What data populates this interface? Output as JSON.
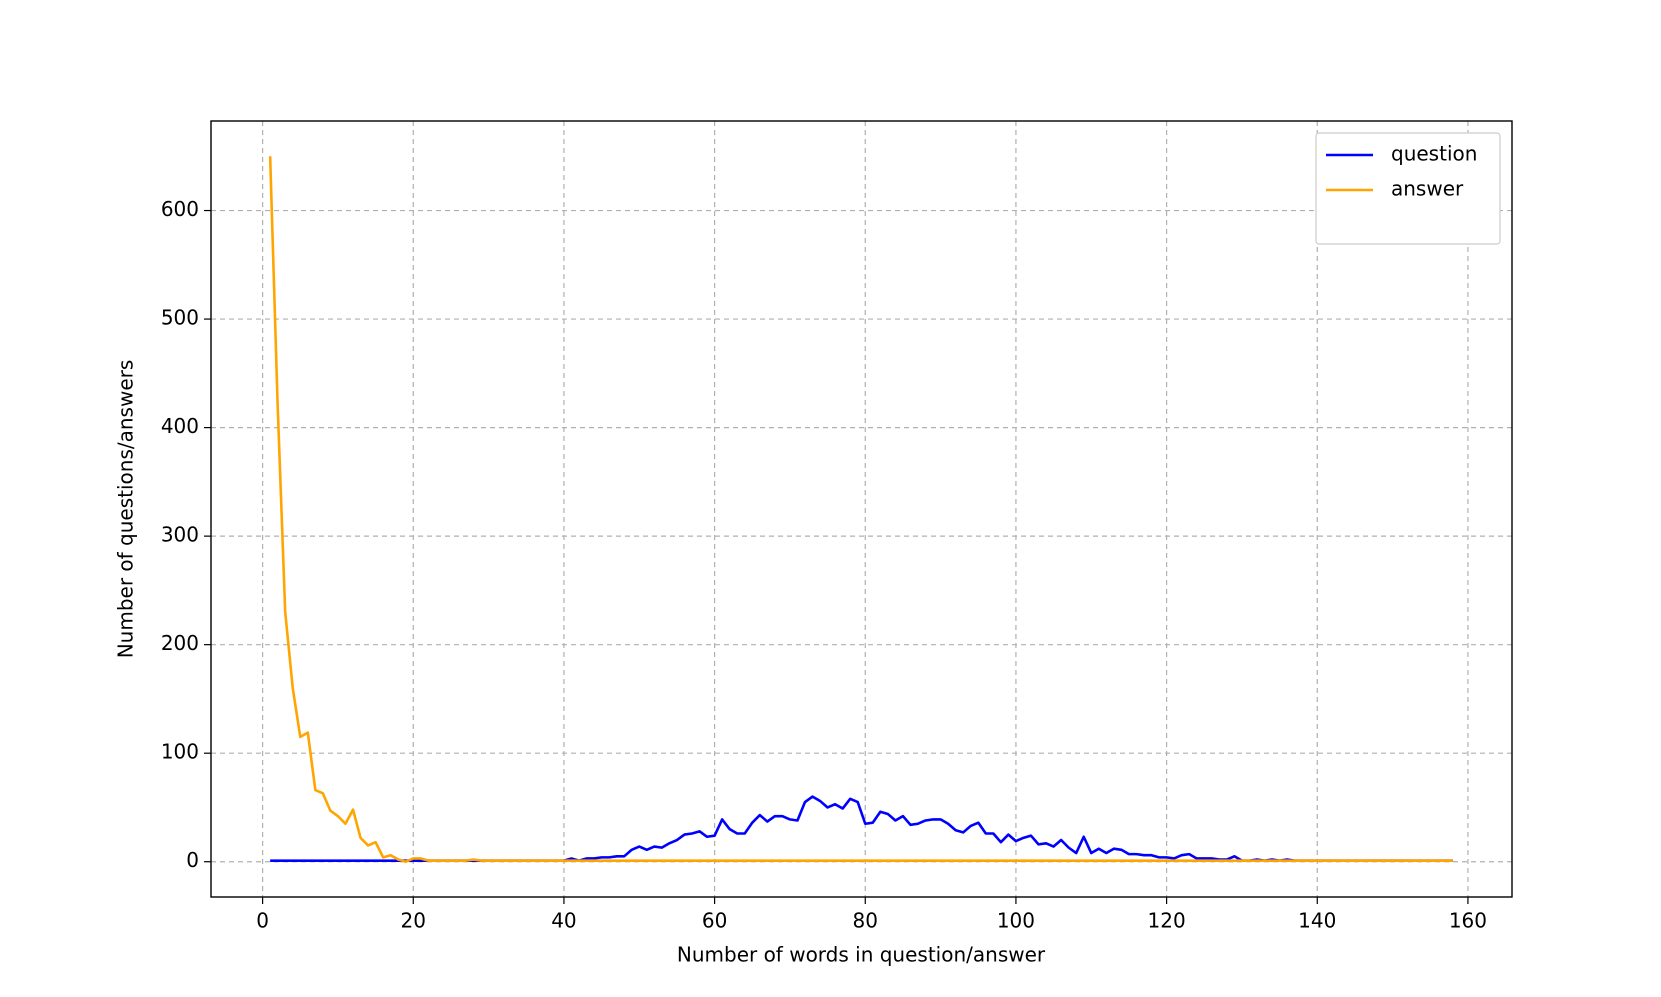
{
  "chart_data": {
    "type": "line",
    "x_label": "Number of words in question/answer",
    "y_label": "Number of questions/answers",
    "x": [
      1,
      2,
      3,
      4,
      5,
      6,
      7,
      8,
      9,
      10,
      11,
      12,
      13,
      14,
      15,
      16,
      17,
      18,
      19,
      20,
      21,
      22,
      23,
      24,
      25,
      26,
      27,
      28,
      29,
      30,
      31,
      32,
      33,
      34,
      35,
      36,
      37,
      38,
      39,
      40,
      41,
      42,
      43,
      44,
      45,
      46,
      47,
      48,
      49,
      50,
      51,
      52,
      53,
      54,
      55,
      56,
      57,
      58,
      59,
      60,
      61,
      62,
      63,
      64,
      65,
      66,
      67,
      68,
      69,
      70,
      71,
      72,
      73,
      74,
      75,
      76,
      77,
      78,
      79,
      80,
      81,
      82,
      83,
      84,
      85,
      86,
      87,
      88,
      89,
      90,
      91,
      92,
      93,
      94,
      95,
      96,
      97,
      98,
      99,
      100,
      101,
      102,
      103,
      104,
      105,
      106,
      107,
      108,
      109,
      110,
      111,
      112,
      113,
      114,
      115,
      116,
      117,
      118,
      119,
      120,
      121,
      122,
      123,
      124,
      125,
      126,
      127,
      128,
      129,
      130,
      131,
      132,
      133,
      134,
      135,
      136,
      137,
      138,
      139,
      140,
      141,
      142,
      143,
      144,
      145,
      146,
      147,
      148,
      149,
      150,
      151,
      152,
      153,
      154,
      155,
      156,
      157,
      158
    ],
    "series": [
      {
        "name": "question",
        "color": "#0000ff",
        "values": [
          1,
          1,
          1,
          1,
          1,
          1,
          1,
          1,
          1,
          1,
          1,
          1,
          1,
          1,
          1,
          1,
          1,
          1,
          1,
          1,
          1,
          1,
          1,
          1,
          1,
          1,
          1,
          1,
          1,
          1,
          1,
          1,
          1,
          1,
          1,
          1,
          1,
          1,
          1,
          1,
          3,
          1,
          3,
          3,
          4,
          4,
          5,
          5,
          11,
          14,
          11,
          14,
          13,
          17,
          20,
          25,
          26,
          28,
          23,
          24,
          39,
          30,
          26,
          26,
          36,
          43,
          37,
          42,
          42,
          39,
          38,
          55,
          60,
          56,
          50,
          53,
          49,
          58,
          55,
          35,
          36,
          46,
          44,
          38,
          42,
          34,
          35,
          38,
          39,
          39,
          35,
          29,
          27,
          33,
          36,
          26,
          26,
          18,
          25,
          19,
          22,
          24,
          16,
          17,
          14,
          20,
          13,
          8,
          23,
          8,
          12,
          8,
          12,
          11,
          7,
          7,
          6,
          6,
          4,
          4,
          3,
          6,
          7,
          3,
          3,
          3,
          2,
          2,
          5,
          1,
          1,
          2,
          1,
          2,
          1,
          2,
          1,
          1,
          1,
          1,
          1,
          1,
          1,
          1,
          1,
          1,
          1,
          1,
          1,
          1,
          1,
          1,
          1,
          1,
          1,
          1,
          1,
          1
        ]
      },
      {
        "name": "answer",
        "color": "#ffa500",
        "values": [
          650,
          420,
          230,
          160,
          115,
          119,
          66,
          63,
          47,
          42,
          35,
          48,
          22,
          15,
          18,
          4,
          6,
          2,
          0,
          3,
          3,
          1,
          1,
          1,
          1,
          1,
          1,
          2,
          1,
          1,
          1,
          1,
          1,
          1,
          1,
          1,
          1,
          1,
          1,
          1,
          1,
          1,
          1,
          1,
          1,
          1,
          1,
          1,
          1,
          1,
          1,
          1,
          1,
          1,
          1,
          1,
          1,
          1,
          1,
          1,
          1,
          1,
          1,
          1,
          1,
          1,
          1,
          1,
          1,
          1,
          1,
          1,
          1,
          1,
          1,
          1,
          1,
          1,
          1,
          1,
          1,
          1,
          1,
          1,
          1,
          1,
          1,
          1,
          1,
          1,
          1,
          1,
          1,
          1,
          1,
          1,
          1,
          1,
          1,
          1,
          1,
          1,
          1,
          1,
          1,
          1,
          1,
          1,
          1,
          1,
          1,
          1,
          1,
          1,
          1,
          1,
          1,
          1,
          1,
          1,
          1,
          1,
          1,
          1,
          1,
          1,
          1,
          1,
          1,
          1,
          1,
          1,
          1,
          1,
          1,
          1,
          1,
          1,
          1,
          1,
          1,
          1,
          1,
          1,
          1,
          1,
          1,
          1,
          1,
          1,
          1,
          1,
          1,
          1,
          1,
          1,
          1,
          1
        ]
      }
    ],
    "xlim": [
      -6.85,
      165.85
    ],
    "ylim": [
      -32.5,
      682.5
    ],
    "xticks": [
      0,
      20,
      40,
      60,
      80,
      100,
      120,
      140,
      160
    ],
    "yticks": [
      0,
      100,
      200,
      300,
      400,
      500,
      600
    ],
    "grid": true,
    "legend": "upper right"
  }
}
